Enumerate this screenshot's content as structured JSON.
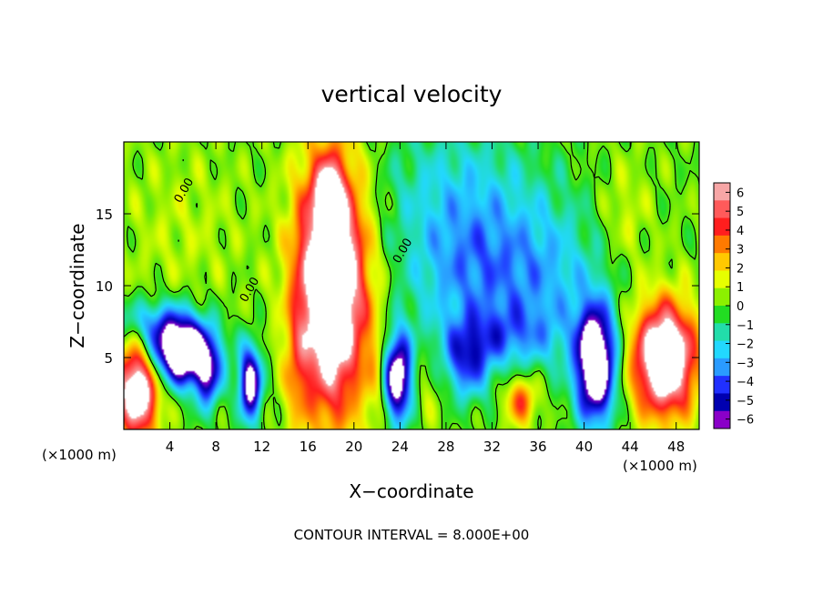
{
  "chart_data": {
    "type": "heatmap",
    "title": "vertical velocity",
    "xlabel": "X−coordinate",
    "ylabel": "Z−coordinate",
    "x_unit_left": "(×1000 m)",
    "x_unit_right": "(×1000 m)",
    "footer": "CONTOUR INTERVAL = 8.000E+00",
    "xlim": [
      0,
      50
    ],
    "ylim": [
      0,
      20
    ],
    "xticks": [
      4,
      8,
      12,
      16,
      20,
      24,
      28,
      32,
      36,
      40,
      44,
      48
    ],
    "yticks": [
      5,
      10,
      15
    ],
    "grid": false,
    "colorbar": {
      "ticks": [
        6,
        5,
        4,
        3,
        2,
        1,
        0,
        -1,
        -2,
        -3,
        -4,
        -5,
        -6
      ],
      "tick_labels": [
        "6",
        "5",
        "4",
        "3",
        "2",
        "1",
        "0",
        "−1",
        "−2",
        "−3",
        "−4",
        "−5",
        "−6"
      ],
      "colors": [
        "#f7a6a6",
        "#ff5a5a",
        "#ff1e1e",
        "#ff7a00",
        "#ffc800",
        "#e6ff00",
        "#8cf000",
        "#22dd22",
        "#22ddaa",
        "#22d8ff",
        "#2a9bff",
        "#2030ff",
        "#0000b0",
        "#8a00c8"
      ],
      "clip_above": "#ffffff",
      "clip_below": "#ffffff"
    },
    "contour_labels": [
      {
        "text": "0.00",
        "x": 5.5,
        "y": 16.5
      },
      {
        "text": "0.00",
        "x": 11.2,
        "y": 9.6
      },
      {
        "text": "0.00",
        "x": 24.5,
        "y": 12.3
      }
    ],
    "field_features": [
      {
        "x": 18.0,
        "y": 10.0,
        "sx": 2.1,
        "sy": 6.0,
        "a": 11.0
      },
      {
        "x": 17.8,
        "y": 16.5,
        "sx": 0.8,
        "sy": 1.5,
        "a": 4.0
      },
      {
        "x": 1.2,
        "y": 2.8,
        "sx": 1.3,
        "sy": 2.3,
        "a": 9.0
      },
      {
        "x": 47.0,
        "y": 4.9,
        "sx": 1.9,
        "sy": 2.7,
        "a": 10.0
      },
      {
        "x": 34.5,
        "y": 2.0,
        "sx": 1.0,
        "sy": 1.2,
        "a": 4.0
      },
      {
        "x": 43.5,
        "y": 15.0,
        "sx": 1.5,
        "sy": 2.5,
        "a": 1.2
      },
      {
        "x": 5.0,
        "y": 14.0,
        "sx": 4.0,
        "sy": 4.0,
        "a": 0.8
      },
      {
        "x": 29.0,
        "y": 17.0,
        "sx": 5.0,
        "sy": 3.5,
        "a": -2.0
      },
      {
        "x": 30.0,
        "y": 11.0,
        "sx": 4.0,
        "sy": 3.5,
        "a": -3.2
      },
      {
        "x": 37.0,
        "y": 10.5,
        "sx": 3.5,
        "sy": 4.0,
        "a": -2.5
      },
      {
        "x": 5.0,
        "y": 5.4,
        "sx": 2.0,
        "sy": 1.6,
        "a": -10.0
      },
      {
        "x": 2.5,
        "y": 7.5,
        "sx": 2.5,
        "sy": 1.2,
        "a": -2.8
      },
      {
        "x": 11.0,
        "y": 3.2,
        "sx": 0.7,
        "sy": 1.8,
        "a": -8.0
      },
      {
        "x": 7.3,
        "y": 3.5,
        "sx": 0.8,
        "sy": 1.6,
        "a": -4.5
      },
      {
        "x": 23.8,
        "y": 3.6,
        "sx": 0.9,
        "sy": 2.2,
        "a": -8.5
      },
      {
        "x": 41.0,
        "y": 4.5,
        "sx": 1.2,
        "sy": 2.8,
        "a": -10.0
      },
      {
        "x": 29.8,
        "y": 4.5,
        "sx": 1.5,
        "sy": 1.8,
        "a": -4.0
      },
      {
        "x": 33.0,
        "y": 6.5,
        "sx": 3.5,
        "sy": 1.5,
        "a": -2.5
      },
      {
        "x": 15.0,
        "y": 4.0,
        "sx": 0.7,
        "sy": 3.0,
        "a": 1.8
      },
      {
        "x": 22.0,
        "y": 4.0,
        "sx": 0.8,
        "sy": 3.0,
        "a": 1.5
      },
      {
        "x": 26.5,
        "y": 3.0,
        "sx": 1.2,
        "sy": 2.0,
        "a": 1.0
      }
    ]
  }
}
